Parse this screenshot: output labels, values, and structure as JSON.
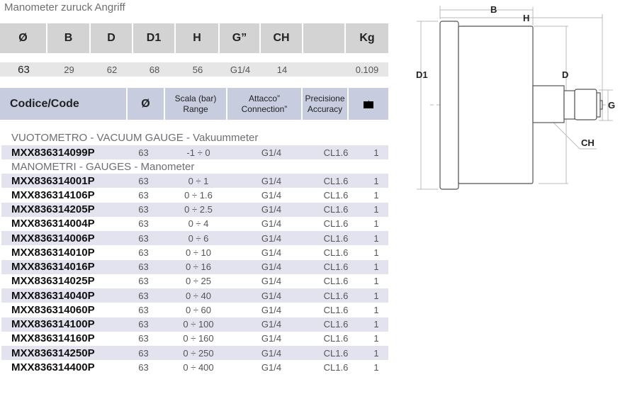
{
  "title": "Manometer zuruck Angriff",
  "spec_table": {
    "headers": [
      "Ø",
      "B",
      "D",
      "D1",
      "H",
      "G”",
      "CH",
      "",
      "Kg"
    ],
    "values": [
      "63",
      "29",
      "62",
      "68",
      "56",
      "G1/4",
      "14",
      "",
      "0.109"
    ]
  },
  "code_table": {
    "headers": {
      "code": "Codice/Code",
      "diameter": "Ø",
      "range_1": "Scala (bar)",
      "range_2": "Range",
      "conn_1": "Attacco”",
      "conn_2": "Connection”",
      "acc_1": "Precisione",
      "acc_2": "Accuracy",
      "pack_icon": "box-icon"
    },
    "sections": [
      {
        "title": "VUOTOMETRO - VACUUM GAUGE - Vakuummeter",
        "rows": [
          [
            "MXX836314099P",
            "63",
            "-1 ÷ 0",
            "G1/4",
            "CL1.6",
            "1"
          ]
        ]
      },
      {
        "title": "MANOMETRI - GAUGES - Manometer",
        "rows": [
          [
            "MXX836314001P",
            "63",
            "0 ÷ 1",
            "G1/4",
            "CL1.6",
            "1"
          ],
          [
            "MXX836314106P",
            "63",
            "0 ÷ 1.6",
            "G1/4",
            "CL1.6",
            "1"
          ],
          [
            "MXX836314205P",
            "63",
            "0 ÷ 2.5",
            "G1/4",
            "CL1.6",
            "1"
          ],
          [
            "MXX836314004P",
            "63",
            "0 ÷ 4",
            "G1/4",
            "CL1.6",
            "1"
          ],
          [
            "MXX836314006P",
            "63",
            "0 ÷ 6",
            "G1/4",
            "CL1.6",
            "1"
          ],
          [
            "MXX836314010P",
            "63",
            "0 ÷ 10",
            "G1/4",
            "CL1.6",
            "1"
          ],
          [
            "MXX836314016P",
            "63",
            "0 ÷ 16",
            "G1/4",
            "CL1.6",
            "1"
          ],
          [
            "MXX836314025P",
            "63",
            "0 ÷ 25",
            "G1/4",
            "CL1.6",
            "1"
          ],
          [
            "MXX836314040P",
            "63",
            "0 ÷ 40",
            "G1/4",
            "CL1.6",
            "1"
          ],
          [
            "MXX836314060P",
            "63",
            "0 ÷ 60",
            "G1/4",
            "CL1.6",
            "1"
          ],
          [
            "MXX836314100P",
            "63",
            "0 ÷ 100",
            "G1/4",
            "CL1.6",
            "1"
          ],
          [
            "MXX836314160P",
            "63",
            "0 ÷ 160",
            "G1/4",
            "CL1.6",
            "1"
          ],
          [
            "MXX836314250P",
            "63",
            "0 ÷ 250",
            "G1/4",
            "CL1.6",
            "1"
          ],
          [
            "MXX836314400P",
            "63",
            "0 ÷ 400",
            "G1/4",
            "CL1.6",
            "1"
          ]
        ]
      }
    ]
  },
  "diagram": {
    "labels": {
      "B": "B",
      "H": "H",
      "D1": "D1",
      "D": "D",
      "G": "G",
      "CH": "CH"
    }
  }
}
